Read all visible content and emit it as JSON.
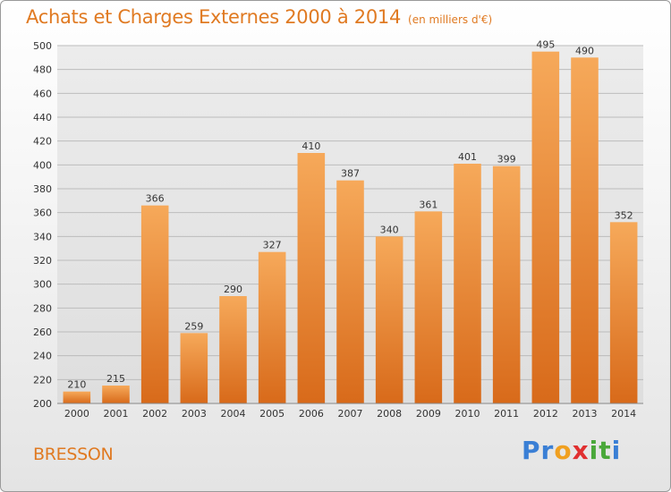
{
  "title": "Achats et Charges Externes 2000 à 2014",
  "subtitle": "(en milliers d'€)",
  "commune": "BRESSON",
  "brand": {
    "letters": [
      "P",
      "r",
      "o",
      "x",
      "i",
      "t",
      "i"
    ],
    "colors": [
      "#3a7fd5",
      "#3a7fd5",
      "#f0a020",
      "#e03030",
      "#4aa83a",
      "#4aa83a",
      "#3a7fd5"
    ]
  },
  "colors": {
    "bar_light": "#f6a95a",
    "bar_dark": "#d86a1a",
    "text": "#e07a22"
  },
  "chart_data": {
    "type": "bar",
    "categories": [
      "2000",
      "2001",
      "2002",
      "2003",
      "2004",
      "2005",
      "2006",
      "2007",
      "2008",
      "2009",
      "2010",
      "2011",
      "2012",
      "2013",
      "2014"
    ],
    "values": [
      210,
      215,
      366,
      259,
      290,
      327,
      410,
      387,
      340,
      361,
      401,
      399,
      495,
      490,
      352
    ],
    "ylim": [
      200,
      500
    ],
    "yticks": [
      200,
      220,
      240,
      260,
      280,
      300,
      320,
      340,
      360,
      380,
      400,
      420,
      440,
      460,
      480,
      500
    ],
    "grid": true
  }
}
